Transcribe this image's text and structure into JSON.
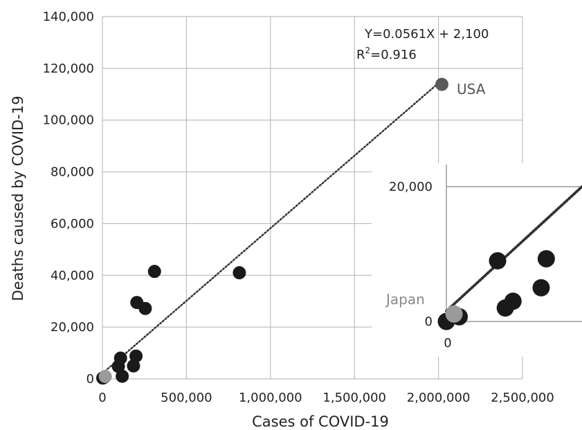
{
  "chart_data": [
    {
      "type": "scatter",
      "xlabel": "Cases of COVID-19",
      "ylabel": "Deaths caused by COVID-19",
      "xlim": [
        0,
        2500000
      ],
      "ylim": [
        0,
        140000
      ],
      "x_ticks": [
        "0",
        "500,000",
        "1,000,000",
        "1,500,000",
        "2,000,000",
        "2,500,000"
      ],
      "y_ticks": [
        "0",
        "20,000",
        "40,000",
        "60,000",
        "80,000",
        "100,000",
        "120,000",
        "140,000"
      ],
      "grid": true,
      "equation": "Y=0.0561X + 2,100",
      "r2_prefix": "R",
      "r2_sup": "2",
      "r2_value": "=0.916",
      "trendline": {
        "slope": 0.0561,
        "intercept": 2100,
        "style": "dotted"
      },
      "colors": {
        "point": "#1a1a1a",
        "usa": "#5a5a5a",
        "japan": "#9a9a9a",
        "grid": "#bdbdbd",
        "trend": "#333333"
      },
      "points": [
        {
          "x": 2000,
          "y": 300
        },
        {
          "x": 8000,
          "y": 500
        },
        {
          "x": 15000,
          "y": 800
        },
        {
          "x": 95000,
          "y": 4800
        },
        {
          "x": 108000,
          "y": 8000
        },
        {
          "x": 118000,
          "y": 1000
        },
        {
          "x": 185000,
          "y": 5000
        },
        {
          "x": 200000,
          "y": 8800
        },
        {
          "x": 205000,
          "y": 29500
        },
        {
          "x": 255000,
          "y": 27200
        },
        {
          "x": 310000,
          "y": 41500
        },
        {
          "x": 815000,
          "y": 41000
        }
      ],
      "highlight_points": [
        {
          "label": "USA",
          "x": 2020000,
          "y": 113800
        },
        {
          "label": "Japan",
          "x": 17000,
          "y": 900
        }
      ]
    },
    {
      "type": "scatter",
      "inset": true,
      "y_ticks": [
        "0",
        "20,000"
      ],
      "x_ticks": [
        "0"
      ],
      "highlight_label": "Japan",
      "points": [
        {
          "x": 0,
          "y": 0
        },
        {
          "x": 5000,
          "y": 700
        },
        {
          "x": 26000,
          "y": 3000
        },
        {
          "x": 20000,
          "y": 9000
        },
        {
          "x": 23000,
          "y": 2000
        },
        {
          "x": 39000,
          "y": 9300
        },
        {
          "x": 37000,
          "y": 5000
        }
      ],
      "highlight_point": {
        "x": 3000,
        "y": 1100
      }
    }
  ]
}
